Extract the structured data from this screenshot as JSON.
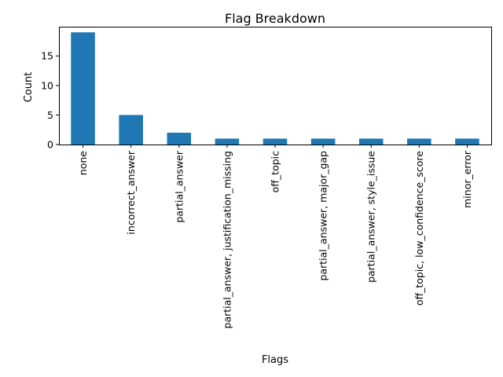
{
  "chart_data": {
    "type": "bar",
    "title": "Flag Breakdown",
    "xlabel": "Flags",
    "ylabel": "Count",
    "categories": [
      "none",
      "incorrect_answer",
      "partial_answer",
      "partial_answer, justification_missing",
      "off_topic",
      "partial_answer, major_gap",
      "partial_answer, style_issue",
      "off_topic, low_confidence_score",
      "minor_error"
    ],
    "values": [
      19,
      5,
      2,
      1,
      1,
      1,
      1,
      1,
      1
    ],
    "ylim": [
      0,
      19.95
    ],
    "yticks": [
      0,
      5,
      10,
      15
    ],
    "bar_color": "#1f77b4",
    "grid": false,
    "legend": "none"
  }
}
